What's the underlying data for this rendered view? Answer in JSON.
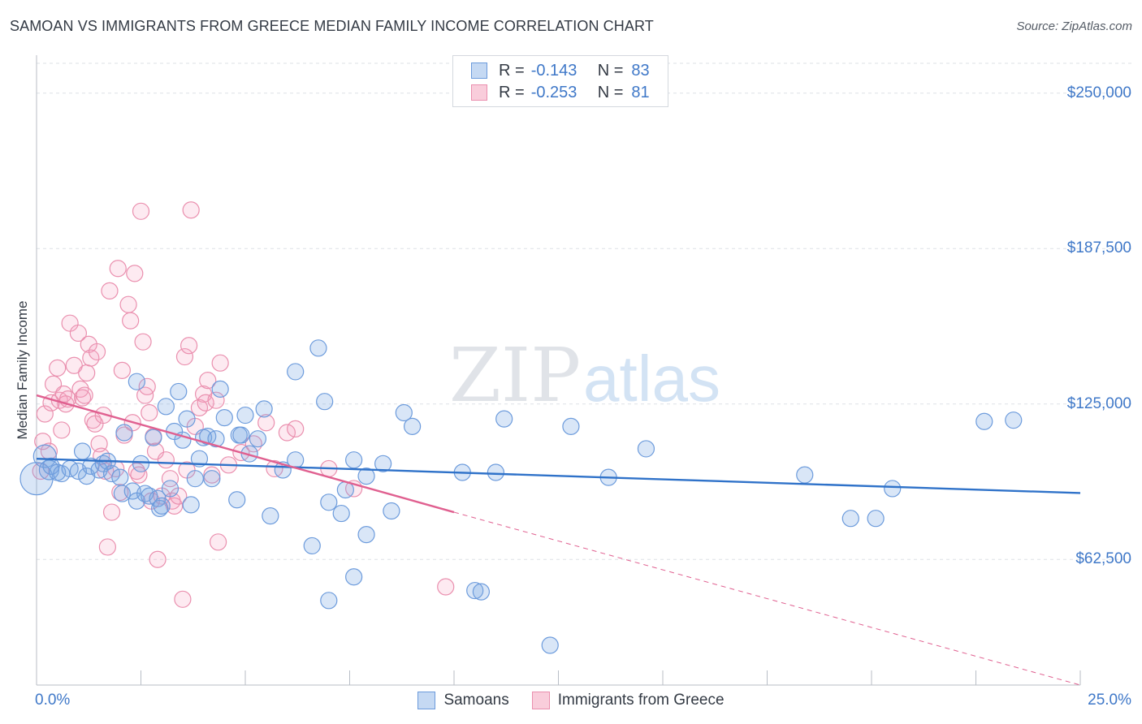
{
  "header": {
    "title": "SAMOAN VS IMMIGRANTS FROM GREECE MEDIAN FAMILY INCOME CORRELATION CHART",
    "source": "Source: ZipAtlas.com"
  },
  "watermark": {
    "zip": "ZIP",
    "atlas": "atlas"
  },
  "legend": {
    "r_label": "R =",
    "n_label": "N =",
    "rows": [
      {
        "r": "-0.143",
        "n": "83"
      },
      {
        "r": "-0.253",
        "n": "81"
      }
    ]
  },
  "chart_data": {
    "type": "scatter",
    "title": "SAMOAN VS IMMIGRANTS FROM GREECE MEDIAN FAMILY INCOME CORRELATION CHART",
    "xlabel": "",
    "ylabel": "Median Family Income",
    "xlim": [
      0,
      25
    ],
    "ylim": [
      12000,
      262000
    ],
    "x_tick_labels": [
      "0.0%",
      "25.0%"
    ],
    "y_ticks": [
      62500,
      125000,
      187500,
      250000
    ],
    "y_tick_labels": [
      "$62,500",
      "$125,000",
      "$187,500",
      "$250,000"
    ],
    "grid": true,
    "legend_position": "top-center",
    "colors": {
      "samoans": "#4a86d8",
      "greece": "#e87aa0",
      "trend_blue": "#2f72c9",
      "trend_pink": "#e06090"
    },
    "series": [
      {
        "name": "Samoans",
        "trend": {
          "x": [
            0.0,
            25.0
          ],
          "y": [
            103000,
            89200
          ]
        },
        "points": [
          [
            0.0,
            95000,
            20
          ],
          [
            0.2,
            104000,
            14
          ],
          [
            0.3,
            98500,
            12
          ],
          [
            0.35,
            100000,
            10
          ],
          [
            0.5,
            97500,
            10
          ],
          [
            0.6,
            97000,
            10
          ],
          [
            0.8,
            99000,
            10
          ],
          [
            1.0,
            98000,
            10
          ],
          [
            1.1,
            106000,
            10
          ],
          [
            1.2,
            96000,
            10
          ],
          [
            1.3,
            100000,
            10
          ],
          [
            1.5,
            98500,
            10
          ],
          [
            1.6,
            101000,
            10
          ],
          [
            1.7,
            102000,
            10
          ],
          [
            1.8,
            97000,
            10
          ],
          [
            2.0,
            95500,
            10
          ],
          [
            2.05,
            89000,
            10
          ],
          [
            2.1,
            113500,
            10
          ],
          [
            2.3,
            90000,
            10
          ],
          [
            2.4,
            86000,
            10
          ],
          [
            2.5,
            101000,
            10
          ],
          [
            2.4,
            134000,
            10
          ],
          [
            2.6,
            89000,
            10
          ],
          [
            2.7,
            88000,
            10
          ],
          [
            2.8,
            111500,
            10
          ],
          [
            2.9,
            87000,
            10
          ],
          [
            2.95,
            83000,
            10
          ],
          [
            3.0,
            84000,
            10
          ],
          [
            3.1,
            124000,
            10
          ],
          [
            3.2,
            91000,
            10
          ],
          [
            3.3,
            114000,
            10
          ],
          [
            3.4,
            130000,
            10
          ],
          [
            3.5,
            110500,
            10
          ],
          [
            3.6,
            119000,
            10
          ],
          [
            3.7,
            84500,
            10
          ],
          [
            3.8,
            95000,
            10
          ],
          [
            3.9,
            103000,
            10
          ],
          [
            4.0,
            111500,
            10
          ],
          [
            4.1,
            112000,
            10
          ],
          [
            4.2,
            95000,
            10
          ],
          [
            4.3,
            111000,
            10
          ],
          [
            4.4,
            131000,
            10
          ],
          [
            4.5,
            119500,
            10
          ],
          [
            4.8,
            86500,
            10
          ],
          [
            4.85,
            112500,
            10
          ],
          [
            4.9,
            112500,
            10
          ],
          [
            5.0,
            120500,
            10
          ],
          [
            5.1,
            105000,
            10
          ],
          [
            5.3,
            111000,
            10
          ],
          [
            5.45,
            123000,
            10
          ],
          [
            5.6,
            80000,
            10
          ],
          [
            5.9,
            98500,
            10
          ],
          [
            6.2,
            138000,
            10
          ],
          [
            6.2,
            102500,
            10
          ],
          [
            6.6,
            68000,
            10
          ],
          [
            6.75,
            147500,
            10
          ],
          [
            6.9,
            126000,
            10
          ],
          [
            7.0,
            85500,
            10
          ],
          [
            7.3,
            81000,
            10
          ],
          [
            7.4,
            90500,
            10
          ],
          [
            7.6,
            102500,
            10
          ],
          [
            7.6,
            55500,
            10
          ],
          [
            7.9,
            96000,
            10
          ],
          [
            8.3,
            101000,
            10
          ],
          [
            8.5,
            82000,
            10
          ],
          [
            8.8,
            121500,
            10
          ],
          [
            9.0,
            116000,
            10
          ],
          [
            10.2,
            97500,
            10
          ],
          [
            10.5,
            50000,
            10
          ],
          [
            10.65,
            49500,
            10
          ],
          [
            11.0,
            97500,
            10
          ],
          [
            11.2,
            119000,
            10
          ],
          [
            12.8,
            116000,
            10
          ],
          [
            13.7,
            95500,
            10
          ],
          [
            14.6,
            107000,
            10
          ],
          [
            18.4,
            96500,
            10
          ],
          [
            19.5,
            79000,
            10
          ],
          [
            20.1,
            79000,
            10
          ],
          [
            20.5,
            91000,
            10
          ],
          [
            22.7,
            118000,
            10
          ],
          [
            23.4,
            118500,
            10
          ],
          [
            7.9,
            72500,
            10
          ],
          [
            7.0,
            46000,
            10
          ],
          [
            12.3,
            28000,
            10
          ]
        ]
      },
      {
        "name": "Immigrants from Greece",
        "trend": {
          "x": [
            0.0,
            10.0
          ],
          "y": [
            128500,
            81500
          ]
        },
        "trend_ext": {
          "x": [
            10.0,
            25.0
          ],
          "y": [
            81500,
            12000
          ]
        },
        "points": [
          [
            0.1,
            98000,
            10
          ],
          [
            0.15,
            110000,
            10
          ],
          [
            0.2,
            121000,
            10
          ],
          [
            0.3,
            106000,
            10
          ],
          [
            0.35,
            125500,
            10
          ],
          [
            0.4,
            133000,
            10
          ],
          [
            0.5,
            139500,
            10
          ],
          [
            0.55,
            126500,
            10
          ],
          [
            0.6,
            114500,
            10
          ],
          [
            0.65,
            129000,
            10
          ],
          [
            0.7,
            125000,
            10
          ],
          [
            0.75,
            127000,
            10
          ],
          [
            0.8,
            157500,
            10
          ],
          [
            0.9,
            140500,
            10
          ],
          [
            1.0,
            153500,
            10
          ],
          [
            1.05,
            131000,
            10
          ],
          [
            1.1,
            127500,
            10
          ],
          [
            1.15,
            128500,
            10
          ],
          [
            1.2,
            137500,
            10
          ],
          [
            1.25,
            149000,
            10
          ],
          [
            1.3,
            143500,
            10
          ],
          [
            1.35,
            118500,
            10
          ],
          [
            1.4,
            117000,
            10
          ],
          [
            1.45,
            146000,
            10
          ],
          [
            1.5,
            109000,
            10
          ],
          [
            1.55,
            104000,
            10
          ],
          [
            1.6,
            120500,
            10
          ],
          [
            1.65,
            98000,
            10
          ],
          [
            1.7,
            67500,
            10
          ],
          [
            1.75,
            170500,
            10
          ],
          [
            1.8,
            81500,
            10
          ],
          [
            1.9,
            99000,
            10
          ],
          [
            1.95,
            179500,
            10
          ],
          [
            2.0,
            89500,
            10
          ],
          [
            2.05,
            138500,
            10
          ],
          [
            2.1,
            112500,
            10
          ],
          [
            2.2,
            165000,
            10
          ],
          [
            2.25,
            158500,
            10
          ],
          [
            2.3,
            117500,
            10
          ],
          [
            2.35,
            177500,
            10
          ],
          [
            2.4,
            98000,
            10
          ],
          [
            2.45,
            96500,
            10
          ],
          [
            2.5,
            202500,
            10
          ],
          [
            2.55,
            150000,
            10
          ],
          [
            2.6,
            128500,
            10
          ],
          [
            2.65,
            132000,
            10
          ],
          [
            2.7,
            121500,
            10
          ],
          [
            2.75,
            86000,
            10
          ],
          [
            2.8,
            112000,
            10
          ],
          [
            2.85,
            106000,
            10
          ],
          [
            2.9,
            62500,
            10
          ],
          [
            3.0,
            88000,
            10
          ],
          [
            3.1,
            102500,
            10
          ],
          [
            3.2,
            95000,
            10
          ],
          [
            3.25,
            86000,
            10
          ],
          [
            3.3,
            84000,
            10
          ],
          [
            3.4,
            88000,
            10
          ],
          [
            3.5,
            46500,
            10
          ],
          [
            3.55,
            144000,
            10
          ],
          [
            3.6,
            98500,
            10
          ],
          [
            3.65,
            148500,
            10
          ],
          [
            3.7,
            203000,
            10
          ],
          [
            3.8,
            116000,
            10
          ],
          [
            3.9,
            123500,
            10
          ],
          [
            4.0,
            129000,
            10
          ],
          [
            4.05,
            125500,
            10
          ],
          [
            4.1,
            134500,
            10
          ],
          [
            4.2,
            96500,
            10
          ],
          [
            4.3,
            126500,
            10
          ],
          [
            4.35,
            69500,
            10
          ],
          [
            4.4,
            141500,
            10
          ],
          [
            4.6,
            100500,
            10
          ],
          [
            4.9,
            105500,
            10
          ],
          [
            5.2,
            109000,
            10
          ],
          [
            5.5,
            117500,
            10
          ],
          [
            5.7,
            99000,
            10
          ],
          [
            6.0,
            113500,
            10
          ],
          [
            6.2,
            115000,
            10
          ],
          [
            7.0,
            99000,
            10
          ],
          [
            7.6,
            91000,
            10
          ],
          [
            9.8,
            51500,
            10
          ]
        ]
      }
    ]
  },
  "bottom_legend": {
    "items": [
      "Samoans",
      "Immigrants from Greece"
    ]
  }
}
